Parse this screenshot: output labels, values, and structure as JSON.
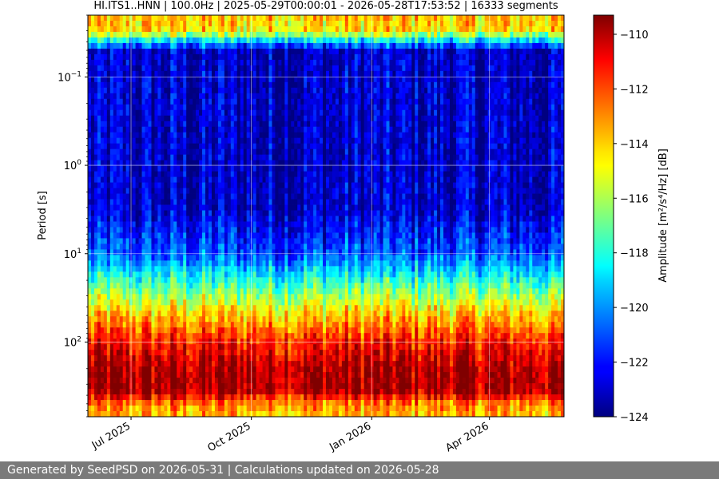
{
  "chart_data": {
    "type": "heatmap",
    "title": "HI.ITS1..HNN | 100.0Hz | 2025-05-29T00:00:01 - 2026-05-28T17:53:52 | 16333 segments",
    "ylabel": "Period [s]",
    "y_scale": "log",
    "y_inverted": true,
    "ylim": [
      0.02,
      700
    ],
    "y_ticks": [
      {
        "value": 0.1,
        "base": "10",
        "exp": "−1"
      },
      {
        "value": 1,
        "base": "10",
        "exp": "0"
      },
      {
        "value": 10,
        "base": "10",
        "exp": "1"
      },
      {
        "value": 100,
        "base": "10",
        "exp": "2"
      }
    ],
    "x_start": "2025-05-29",
    "x_end": "2026-05-28",
    "x_ticks": [
      {
        "date": "2025-07-01",
        "label": "Jul 2025"
      },
      {
        "date": "2025-10-01",
        "label": "Oct 2025"
      },
      {
        "date": "2026-01-01",
        "label": "Jan 2026"
      },
      {
        "date": "2026-04-01",
        "label": "Apr 2026"
      }
    ],
    "grid": true,
    "colormap": "jet",
    "colorbar": {
      "label": "Amplitude [m²/s⁴/Hz] [dB]",
      "range": [
        -124,
        -109.3
      ],
      "ticks": [
        {
          "value": -110,
          "label": "−110"
        },
        {
          "value": -112,
          "label": "−112"
        },
        {
          "value": -114,
          "label": "−114"
        },
        {
          "value": -116,
          "label": "−116"
        },
        {
          "value": -118,
          "label": "−118"
        },
        {
          "value": -120,
          "label": "−120"
        },
        {
          "value": -122,
          "label": "−122"
        },
        {
          "value": -124,
          "label": "−124"
        }
      ]
    },
    "amplitude_by_period": [
      {
        "period": 0.02,
        "db": -114
      },
      {
        "period": 0.03,
        "db": -114.5
      },
      {
        "period": 0.05,
        "db": -123
      },
      {
        "period": 0.1,
        "db": -123
      },
      {
        "period": 1,
        "db": -123
      },
      {
        "period": 3,
        "db": -123
      },
      {
        "period": 10,
        "db": -121
      },
      {
        "period": 20,
        "db": -118
      },
      {
        "period": 50,
        "db": -114
      },
      {
        "period": 100,
        "db": -111.5
      },
      {
        "period": 200,
        "db": -110
      },
      {
        "period": 350,
        "db": -109.8
      },
      {
        "period": 500,
        "db": -113
      },
      {
        "period": 700,
        "db": -114
      }
    ]
  },
  "footer": {
    "text": "Generated by SeedPSD on 2026-05-31 | Calculations updated on 2026-05-28"
  }
}
